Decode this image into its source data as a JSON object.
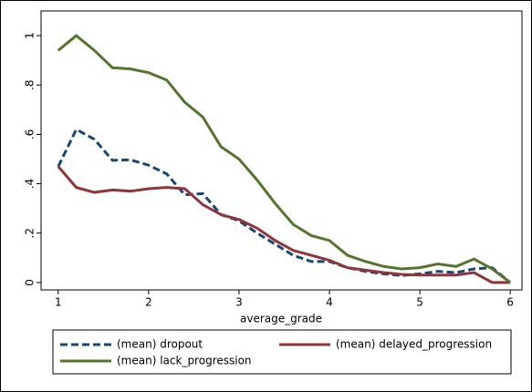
{
  "chart_data": {
    "type": "line",
    "xlabel": "average_grade",
    "x": [
      1,
      1.2,
      1.4,
      1.6,
      1.8,
      2,
      2.2,
      2.4,
      2.6,
      2.8,
      3,
      3.2,
      3.4,
      3.6,
      3.8,
      4,
      4.2,
      4.4,
      4.6,
      4.8,
      5,
      5.2,
      5.4,
      5.6,
      5.8,
      6
    ],
    "series": [
      {
        "name": "(mean) dropout",
        "color": "#1a476f",
        "style": "dash",
        "values": [
          0.47,
          0.62,
          0.58,
          0.495,
          0.497,
          0.475,
          0.44,
          0.355,
          0.36,
          0.275,
          0.25,
          0.2,
          0.155,
          0.11,
          0.085,
          0.085,
          0.06,
          0.045,
          0.035,
          0.028,
          0.035,
          0.045,
          0.04,
          0.055,
          0.06,
          0
        ]
      },
      {
        "name": "(mean) delayed_progression",
        "color": "#90353b",
        "style": "solid",
        "values": [
          0.47,
          0.385,
          0.365,
          0.375,
          0.37,
          0.38,
          0.385,
          0.38,
          0.315,
          0.275,
          0.255,
          0.22,
          0.17,
          0.13,
          0.11,
          0.09,
          0.06,
          0.05,
          0.04,
          0.033,
          0.03,
          0.03,
          0.03,
          0.04,
          0,
          0
        ]
      },
      {
        "name": "(mean) lack_progression",
        "color": "#55752f",
        "style": "solid",
        "values": [
          0.94,
          1.0,
          0.94,
          0.87,
          0.865,
          0.85,
          0.82,
          0.73,
          0.67,
          0.55,
          0.5,
          0.415,
          0.32,
          0.235,
          0.19,
          0.17,
          0.11,
          0.085,
          0.065,
          0.055,
          0.06,
          0.075,
          0.065,
          0.095,
          0.055,
          0
        ]
      }
    ],
    "xlim": [
      0.81,
      6.13
    ],
    "xticks": [
      1,
      2,
      3,
      4,
      5,
      6
    ],
    "ylim": [
      -0.03,
      1.1
    ],
    "yticks": [
      0,
      {
        "value": 0.2,
        "label": ".2"
      },
      {
        "value": 0.4,
        "label": ".4"
      },
      {
        "value": 0.6,
        "label": ".6"
      },
      {
        "value": 0.8,
        "label": ".8"
      },
      1
    ],
    "grid": false,
    "legend": "bottom"
  }
}
